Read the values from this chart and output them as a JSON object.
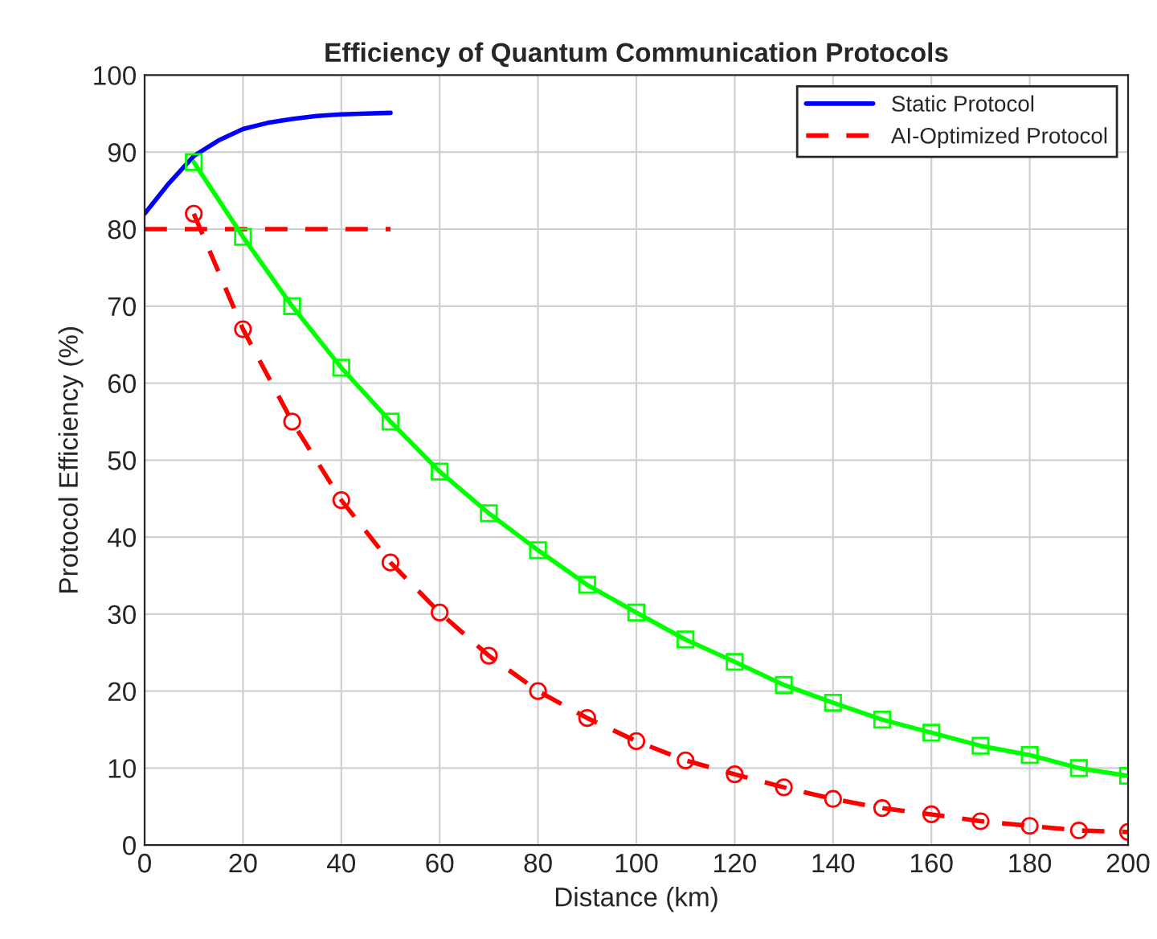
{
  "chart_data": {
    "type": "line",
    "title": "Efficiency of Quantum Communication Protocols",
    "xlabel": "Distance (km)",
    "ylabel": "Protocol Efficiency (%)",
    "xlim": [
      0,
      200
    ],
    "ylim": [
      0,
      100
    ],
    "xticks": [
      0,
      20,
      40,
      60,
      80,
      100,
      120,
      140,
      160,
      180,
      200
    ],
    "yticks": [
      0,
      10,
      20,
      30,
      40,
      50,
      60,
      70,
      80,
      90,
      100
    ],
    "grid": true,
    "legend": "top right",
    "series": [
      {
        "name": "Static Protocol",
        "color": "#0000ff",
        "line_style": "solid",
        "marker": "none",
        "x": [
          0,
          5,
          10,
          15,
          20,
          25,
          30,
          35,
          40,
          45,
          50
        ],
        "values": [
          82,
          86,
          89.5,
          91.5,
          93,
          93.8,
          94.3,
          94.7,
          94.9,
          95,
          95.1
        ]
      },
      {
        "name": "AI-Optimized Protocol",
        "color": "#ff0000",
        "line_style": "dashed",
        "marker": "none",
        "x": [
          0,
          50
        ],
        "values": [
          80,
          80
        ]
      },
      {
        "color": "#00ff00",
        "line_style": "solid",
        "marker": "square",
        "x": [
          10,
          20,
          30,
          40,
          50,
          60,
          70,
          80,
          90,
          100,
          110,
          120,
          130,
          140,
          150,
          160,
          170,
          180,
          190,
          200
        ],
        "values": [
          88.7,
          79,
          70,
          62,
          55,
          48.5,
          43.1,
          38.3,
          33.8,
          30.2,
          26.7,
          23.8,
          20.8,
          18.5,
          16.3,
          14.6,
          12.9,
          11.7,
          10,
          9
        ]
      },
      {
        "color": "#ff0000",
        "line_style": "dashed",
        "marker": "circle",
        "x": [
          10,
          20,
          30,
          40,
          50,
          60,
          70,
          80,
          90,
          100,
          110,
          120,
          130,
          140,
          150,
          160,
          170,
          180,
          190,
          200
        ],
        "values": [
          82,
          67,
          55,
          44.8,
          36.7,
          30.2,
          24.6,
          20,
          16.5,
          13.5,
          11,
          9.2,
          7.5,
          6,
          4.8,
          4,
          3.1,
          2.5,
          1.9,
          1.7
        ]
      }
    ]
  }
}
